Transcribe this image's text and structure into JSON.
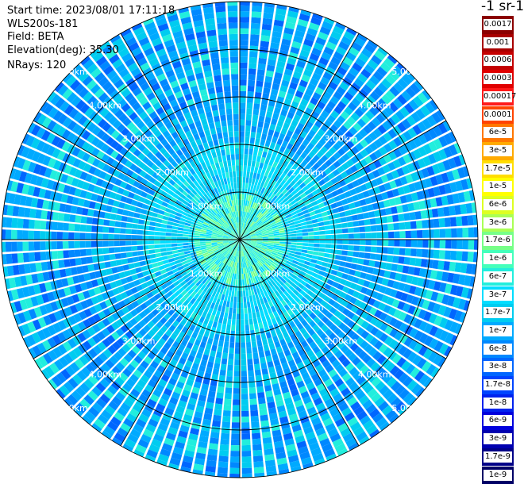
{
  "info": {
    "start_time": "Start time: 2023/08/01 17:11:18",
    "device": "WLS200s-181",
    "field": "Field: BETA",
    "elevation": "Elevation(deg): 35.30",
    "nrays": "NRays: 120"
  },
  "legend": {
    "unit": "-1 sr-1",
    "entries": [
      {
        "label": "0.0017",
        "color": "#8b0000"
      },
      {
        "label": "0.001",
        "color": "#a80000"
      },
      {
        "label": "0.0006",
        "color": "#c40000"
      },
      {
        "label": "0.0003",
        "color": "#e00000"
      },
      {
        "label": "0.00017",
        "color": "#ff1a1a"
      },
      {
        "label": "0.0001",
        "color": "#ff4400"
      },
      {
        "label": "6e-5",
        "color": "#ff7700"
      },
      {
        "label": "3e-5",
        "color": "#ffaa00"
      },
      {
        "label": "1.7e-5",
        "color": "#ffdd00"
      },
      {
        "label": "1e-5",
        "color": "#ffff00"
      },
      {
        "label": "6e-6",
        "color": "#ddff22"
      },
      {
        "label": "3e-6",
        "color": "#aaff55"
      },
      {
        "label": "1.7e-6",
        "color": "#77ff88"
      },
      {
        "label": "1e-6",
        "color": "#44ffbb"
      },
      {
        "label": "6e-7",
        "color": "#22eedd"
      },
      {
        "label": "3e-7",
        "color": "#00ddff"
      },
      {
        "label": "1.7e-7",
        "color": "#00ccf0"
      },
      {
        "label": "1e-7",
        "color": "#00aaff"
      },
      {
        "label": "6e-8",
        "color": "#0088ff"
      },
      {
        "label": "3e-8",
        "color": "#0066ff"
      },
      {
        "label": "1.7e-8",
        "color": "#0044ff"
      },
      {
        "label": "1e-8",
        "color": "#0022ee"
      },
      {
        "label": "6e-9",
        "color": "#0000dd"
      },
      {
        "label": "3e-9",
        "color": "#0000b0"
      },
      {
        "label": "1.7e-9",
        "color": "#000088"
      },
      {
        "label": "1e-9",
        "color": "#000066"
      }
    ]
  },
  "chart_data": {
    "type": "heatmap",
    "field": "BETA",
    "n_rays": 120,
    "range_rings_km": [
      1,
      2,
      3,
      4,
      5
    ],
    "range_ring_labels": [
      "1.00km",
      "2.00km",
      "3.00km",
      "4.00km",
      "5.00km"
    ],
    "max_range_km": 5.0,
    "spokes_deg": [
      0,
      30,
      60,
      90,
      120,
      150,
      180,
      210,
      240,
      270,
      300,
      330
    ],
    "bands": [
      {
        "range_km": [
          0.0,
          1.0
        ],
        "typical_value": "1e-6 to 3e-7"
      },
      {
        "range_km": [
          1.0,
          2.0
        ],
        "typical_value": "3e-7 to 1.7e-7"
      },
      {
        "range_km": [
          2.0,
          3.0
        ],
        "typical_value": "1.7e-7 to 6e-8"
      },
      {
        "range_km": [
          3.0,
          5.0
        ],
        "typical_value": "6e-8 to 1e-8"
      }
    ],
    "grid": true
  }
}
